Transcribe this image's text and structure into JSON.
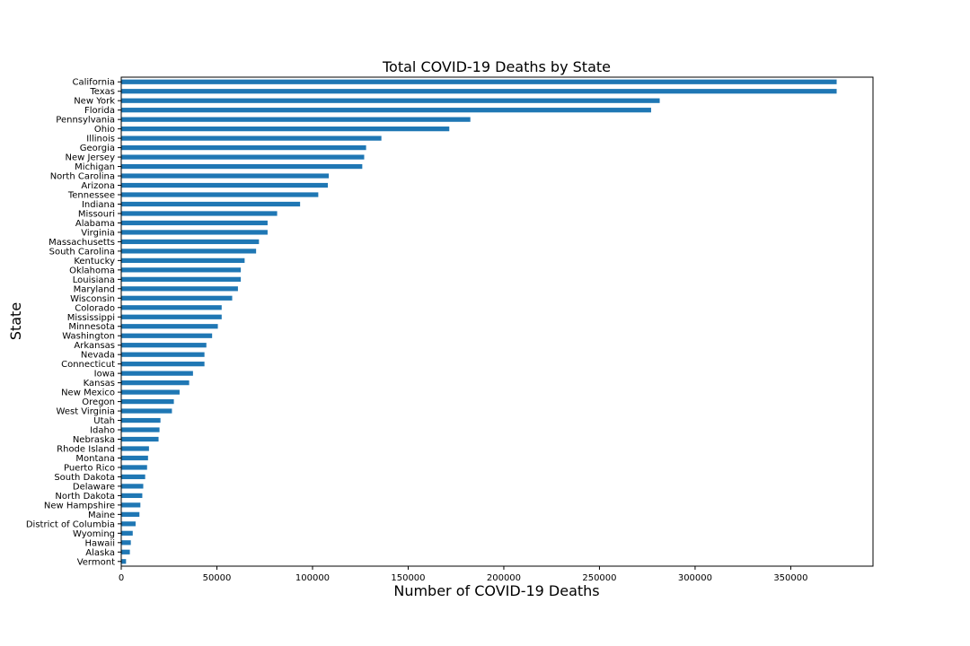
{
  "chart_data": {
    "type": "bar",
    "orientation": "horizontal",
    "title": "Total COVID-19 Deaths by State",
    "xlabel": "Number of COVID-19 Deaths",
    "ylabel": "State",
    "xlim": [
      0,
      393000
    ],
    "xticks": [
      0,
      50000,
      100000,
      150000,
      200000,
      250000,
      300000,
      350000
    ],
    "grid": false,
    "bar_color": "#1f77b4",
    "categories": [
      "California",
      "Texas",
      "New York",
      "Florida",
      "Pennsylvania",
      "Ohio",
      "Illinois",
      "Georgia",
      "New Jersey",
      "Michigan",
      "North Carolina",
      "Arizona",
      "Tennessee",
      "Indiana",
      "Missouri",
      "Alabama",
      "Virginia",
      "Massachusetts",
      "South Carolina",
      "Kentucky",
      "Oklahoma",
      "Louisiana",
      "Maryland",
      "Wisconsin",
      "Colorado",
      "Mississippi",
      "Minnesota",
      "Washington",
      "Arkansas",
      "Nevada",
      "Connecticut",
      "Iowa",
      "Kansas",
      "New Mexico",
      "Oregon",
      "West Virginia",
      "Utah",
      "Idaho",
      "Nebraska",
      "Rhode Island",
      "Montana",
      "Puerto Rico",
      "South Dakota",
      "Delaware",
      "North Dakota",
      "New Hampshire",
      "Maine",
      "District of Columbia",
      "Wyoming",
      "Hawaii",
      "Alaska",
      "Vermont"
    ],
    "values": [
      374000,
      374000,
      281500,
      277000,
      182500,
      171500,
      136000,
      128000,
      127000,
      126000,
      108500,
      108000,
      103000,
      93500,
      81500,
      76500,
      76500,
      72000,
      70500,
      64500,
      62500,
      62500,
      61000,
      58000,
      52500,
      52500,
      50500,
      47500,
      44500,
      43500,
      43500,
      37500,
      35500,
      30500,
      27500,
      26500,
      20500,
      20000,
      19500,
      14500,
      14000,
      13500,
      12500,
      11500,
      11000,
      10000,
      9500,
      7500,
      6000,
      5000,
      4500,
      2500
    ]
  }
}
